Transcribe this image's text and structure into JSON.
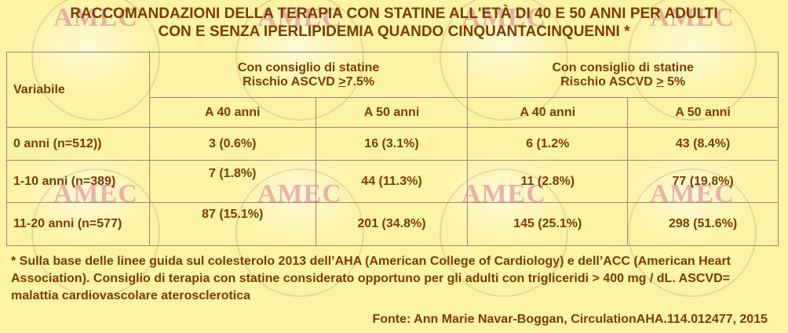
{
  "title": {
    "line1": "RACCOMANDAZIONI DELLA TERAPIA CON STATINE ALL'ETÀ DI 40 E 50 ANNI PER ADULTI",
    "line2": "CON E SENZA IPERLIPIDEMIA QUANDO CINQUANTACINQUENNI *"
  },
  "watermark": {
    "text": "AMEC"
  },
  "table": {
    "variable_header": "Variabile",
    "groups": [
      {
        "line1": "Con consiglio di statine",
        "risk_prefix": "Rischio ASCVD ",
        "risk_symbol": ">",
        "risk_value": "7.5%"
      },
      {
        "line1": "Con consiglio di statine",
        "risk_prefix": "Rischio ASCVD",
        "risk_symbol": ">",
        "risk_value": " 5%"
      }
    ],
    "subheaders": [
      "A 40 anni",
      "A 50 anni",
      "A 40 anni",
      "A 50 anni"
    ],
    "rows": [
      {
        "label": "0 anni (n=512))",
        "values": [
          "3 (0.6%)",
          "16 (3.1%)",
          "6 (1.2%",
          "43 (8.4%)"
        ]
      },
      {
        "label": "1-10 anni (n=389)",
        "values": [
          "7 (1.8%)",
          "44 (11.3%)",
          "11 (2.8%)",
          "77 (19.8%)"
        ]
      },
      {
        "label": "11-20 anni (n=577)",
        "values": [
          "87 (15.1%)",
          "201 (34.8%)",
          "145 (25.1%)",
          "298 (51.6%)"
        ]
      }
    ]
  },
  "footnote": "* Sulla base delle linee guida sul colesterolo 2013 dell’AHA (American College of Cardiology) e dell’ACC (American Heart Association). Consiglio di terapia con statine considerato opportuno per gli adulti con trigliceridi > 400 mg / dL. ASCVD= malattia cardiovascolare aterosclerotica",
  "source": "Fonte: Ann Marie Navar-Boggan, CirculationAHA.114.012477, 2015"
}
